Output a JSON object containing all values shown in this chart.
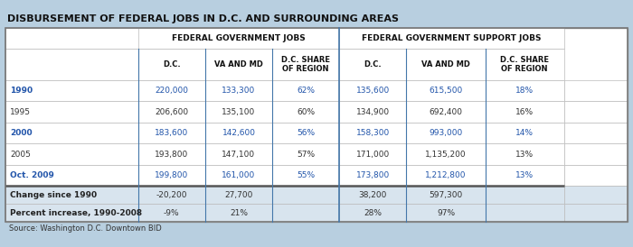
{
  "title": "DISBURSEMENT OF FEDERAL JOBS IN D.C. AND SURROUNDING AREAS",
  "bg_color": "#b8cfe0",
  "table_bg": "#ffffff",
  "header1": "FEDERAL GOVERNMENT JOBS",
  "header2": "FEDERAL GOVERNMENT SUPPORT JOBS",
  "col_headers": [
    "D.C.",
    "VA AND MD",
    "D.C. SHARE\nOF REGION",
    "D.C.",
    "VA AND MD",
    "D.C. SHARE\nOF REGION"
  ],
  "row_labels": [
    "1990",
    "1995",
    "2000",
    "2005",
    "Oct. 2009",
    "Change since 1990",
    "Percent increase, 1990-2008"
  ],
  "row_label_colors": [
    "#2255aa",
    "#333333",
    "#2255aa",
    "#333333",
    "#2255aa",
    "#222222",
    "#222222"
  ],
  "row_label_bold": [
    true,
    false,
    true,
    false,
    true,
    true,
    true
  ],
  "data": [
    [
      "220,000",
      "133,300",
      "62%",
      "135,600",
      "615,500",
      "18%"
    ],
    [
      "206,600",
      "135,100",
      "60%",
      "134,900",
      "692,400",
      "16%"
    ],
    [
      "183,600",
      "142,600",
      "56%",
      "158,300",
      "993,000",
      "14%"
    ],
    [
      "193,800",
      "147,100",
      "57%",
      "171,000",
      "1,135,200",
      "13%"
    ],
    [
      "199,800",
      "161,000",
      "55%",
      "173,800",
      "1,212,800",
      "13%"
    ],
    [
      "-20,200",
      "27,700",
      "",
      "38,200",
      "597,300",
      ""
    ],
    [
      "-9%",
      "21%",
      "",
      "28%",
      "97%",
      ""
    ]
  ],
  "data_colors": [
    [
      "#2255aa",
      "#2255aa",
      "#2255aa",
      "#2255aa",
      "#2255aa",
      "#2255aa"
    ],
    [
      "#333333",
      "#333333",
      "#333333",
      "#333333",
      "#333333",
      "#333333"
    ],
    [
      "#2255aa",
      "#2255aa",
      "#2255aa",
      "#2255aa",
      "#2255aa",
      "#2255aa"
    ],
    [
      "#333333",
      "#333333",
      "#333333",
      "#333333",
      "#333333",
      "#333333"
    ],
    [
      "#2255aa",
      "#2255aa",
      "#2255aa",
      "#2255aa",
      "#2255aa",
      "#2255aa"
    ],
    [
      "#333333",
      "#333333",
      "#333333",
      "#333333",
      "#333333",
      "#333333"
    ],
    [
      "#333333",
      "#333333",
      "#333333",
      "#333333",
      "#333333",
      "#333333"
    ]
  ],
  "row_bgs": [
    "#ffffff",
    "#ffffff",
    "#ffffff",
    "#ffffff",
    "#ffffff",
    "#d8e4ee",
    "#d8e4ee"
  ],
  "source": "Source: Washington D.C. Downtown BID",
  "col_sep_after": 3,
  "separator_after_row": 4
}
